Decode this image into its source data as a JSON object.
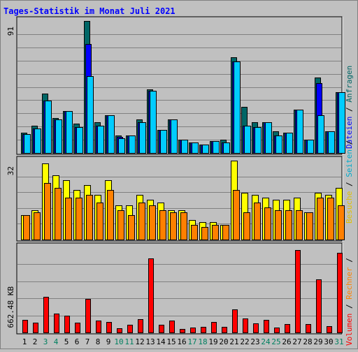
{
  "title": "Tages-Statistik im Monat Juli 2021",
  "colors": {
    "background": "#c0c0c0",
    "title": "#0000ff",
    "anfragen": "#006666",
    "dateien": "#0000ff",
    "seiten": "#00ccff",
    "besuche": "#ffff00",
    "rechner": "#ff8000",
    "volumen": "#ff0000",
    "weekday_label": "#000000",
    "weekend_label": "#008060",
    "separator": "#000000"
  },
  "legend": {
    "anfragen": "Anfragen",
    "dateien": "Dateien",
    "seiten": "Seiten",
    "besuche": "Besuche",
    "rechner": "Rechner",
    "volumen": "Volumen",
    "separator": " / "
  },
  "chart_data": [
    {
      "type": "bar",
      "panel": "top",
      "ymax_label": "91",
      "ylim": [
        0,
        91
      ],
      "categories": [
        "1",
        "2",
        "3",
        "4",
        "5",
        "6",
        "7",
        "8",
        "9",
        "10",
        "11",
        "12",
        "13",
        "14",
        "15",
        "16",
        "17",
        "18",
        "19",
        "20",
        "21",
        "22",
        "23",
        "24",
        "25",
        "26",
        "27",
        "28",
        "29",
        "30",
        "31"
      ],
      "series": [
        {
          "name": "Anfragen",
          "values": [
            14,
            19,
            41,
            24,
            29,
            20,
            91,
            21,
            26,
            12,
            12,
            23,
            44,
            16,
            23,
            9,
            7,
            6,
            8,
            9,
            66,
            32,
            21,
            21,
            15,
            14,
            30,
            9,
            52,
            15,
            42
          ]
        },
        {
          "name": "Dateien",
          "values": [
            13,
            17,
            36,
            23,
            29,
            18,
            75,
            19,
            26,
            11,
            12,
            21,
            43,
            16,
            23,
            9,
            7,
            6,
            8,
            7,
            63,
            19,
            18,
            21,
            12,
            14,
            30,
            9,
            48,
            15,
            42
          ]
        },
        {
          "name": "Seiten",
          "values": [
            13,
            17,
            36,
            23,
            29,
            18,
            53,
            19,
            26,
            10,
            12,
            21,
            43,
            16,
            23,
            9,
            7,
            6,
            8,
            7,
            63,
            19,
            18,
            21,
            12,
            14,
            30,
            9,
            26,
            15,
            42
          ]
        }
      ]
    },
    {
      "type": "bar",
      "panel": "middle",
      "ymax_label": "32",
      "ylim": [
        0,
        32
      ],
      "categories": [
        "1",
        "2",
        "3",
        "4",
        "5",
        "6",
        "7",
        "8",
        "9",
        "10",
        "11",
        "12",
        "13",
        "14",
        "15",
        "16",
        "17",
        "18",
        "19",
        "20",
        "21",
        "22",
        "23",
        "24",
        "25",
        "26",
        "27",
        "28",
        "29",
        "30",
        "31"
      ],
      "series": [
        {
          "name": "Besuche",
          "values": [
            10,
            12,
            31,
            26,
            24,
            20,
            22,
            18,
            24,
            14,
            14,
            18,
            16,
            15,
            12,
            12,
            8,
            7,
            7,
            6,
            32,
            19,
            18,
            17,
            16,
            16,
            17,
            11,
            19,
            18,
            21
          ]
        },
        {
          "name": "Rechner",
          "values": [
            10,
            11,
            23,
            21,
            17,
            17,
            18,
            15,
            20,
            12,
            10,
            15,
            14,
            12,
            11,
            11,
            6,
            5,
            6,
            6,
            20,
            11,
            15,
            13,
            12,
            12,
            12,
            11,
            17,
            17,
            14
          ]
        }
      ]
    },
    {
      "type": "bar",
      "panel": "bottom",
      "ymax_label": "662.48 KB",
      "unit": "KB",
      "ylim": [
        0,
        662.48
      ],
      "categories": [
        "1",
        "2",
        "3",
        "4",
        "5",
        "6",
        "7",
        "8",
        "9",
        "10",
        "11",
        "12",
        "13",
        "14",
        "15",
        "16",
        "17",
        "18",
        "19",
        "20",
        "21",
        "22",
        "23",
        "24",
        "25",
        "26",
        "27",
        "28",
        "29",
        "30",
        "31"
      ],
      "series": [
        {
          "name": "Volumen",
          "values": [
            96,
            78,
            277,
            144,
            129,
            77,
            260,
            90,
            82,
            33,
            60,
            101,
            574,
            58,
            92,
            27,
            37,
            44,
            81,
            43,
            177,
            106,
            69,
            96,
            38,
            64,
            640,
            66,
            410,
            50,
            617
          ]
        }
      ]
    }
  ],
  "x_labels": [
    {
      "text": "1",
      "weekend": false
    },
    {
      "text": "2",
      "weekend": false
    },
    {
      "text": "3",
      "weekend": true
    },
    {
      "text": "4",
      "weekend": true
    },
    {
      "text": "5",
      "weekend": false
    },
    {
      "text": "6",
      "weekend": false
    },
    {
      "text": "7",
      "weekend": false
    },
    {
      "text": "8",
      "weekend": false
    },
    {
      "text": "9",
      "weekend": false
    },
    {
      "text": "10",
      "weekend": true
    },
    {
      "text": "11",
      "weekend": true
    },
    {
      "text": "12",
      "weekend": false
    },
    {
      "text": "13",
      "weekend": false
    },
    {
      "text": "14",
      "weekend": false
    },
    {
      "text": "15",
      "weekend": false
    },
    {
      "text": "16",
      "weekend": false
    },
    {
      "text": "17",
      "weekend": true
    },
    {
      "text": "18",
      "weekend": true
    },
    {
      "text": "19",
      "weekend": false
    },
    {
      "text": "20",
      "weekend": false
    },
    {
      "text": "21",
      "weekend": false
    },
    {
      "text": "22",
      "weekend": false
    },
    {
      "text": "23",
      "weekend": false
    },
    {
      "text": "24",
      "weekend": true
    },
    {
      "text": "25",
      "weekend": true
    },
    {
      "text": "26",
      "weekend": false
    },
    {
      "text": "27",
      "weekend": false
    },
    {
      "text": "28",
      "weekend": false
    },
    {
      "text": "29",
      "weekend": false
    },
    {
      "text": "30",
      "weekend": false
    },
    {
      "text": "31",
      "weekend": true
    }
  ]
}
